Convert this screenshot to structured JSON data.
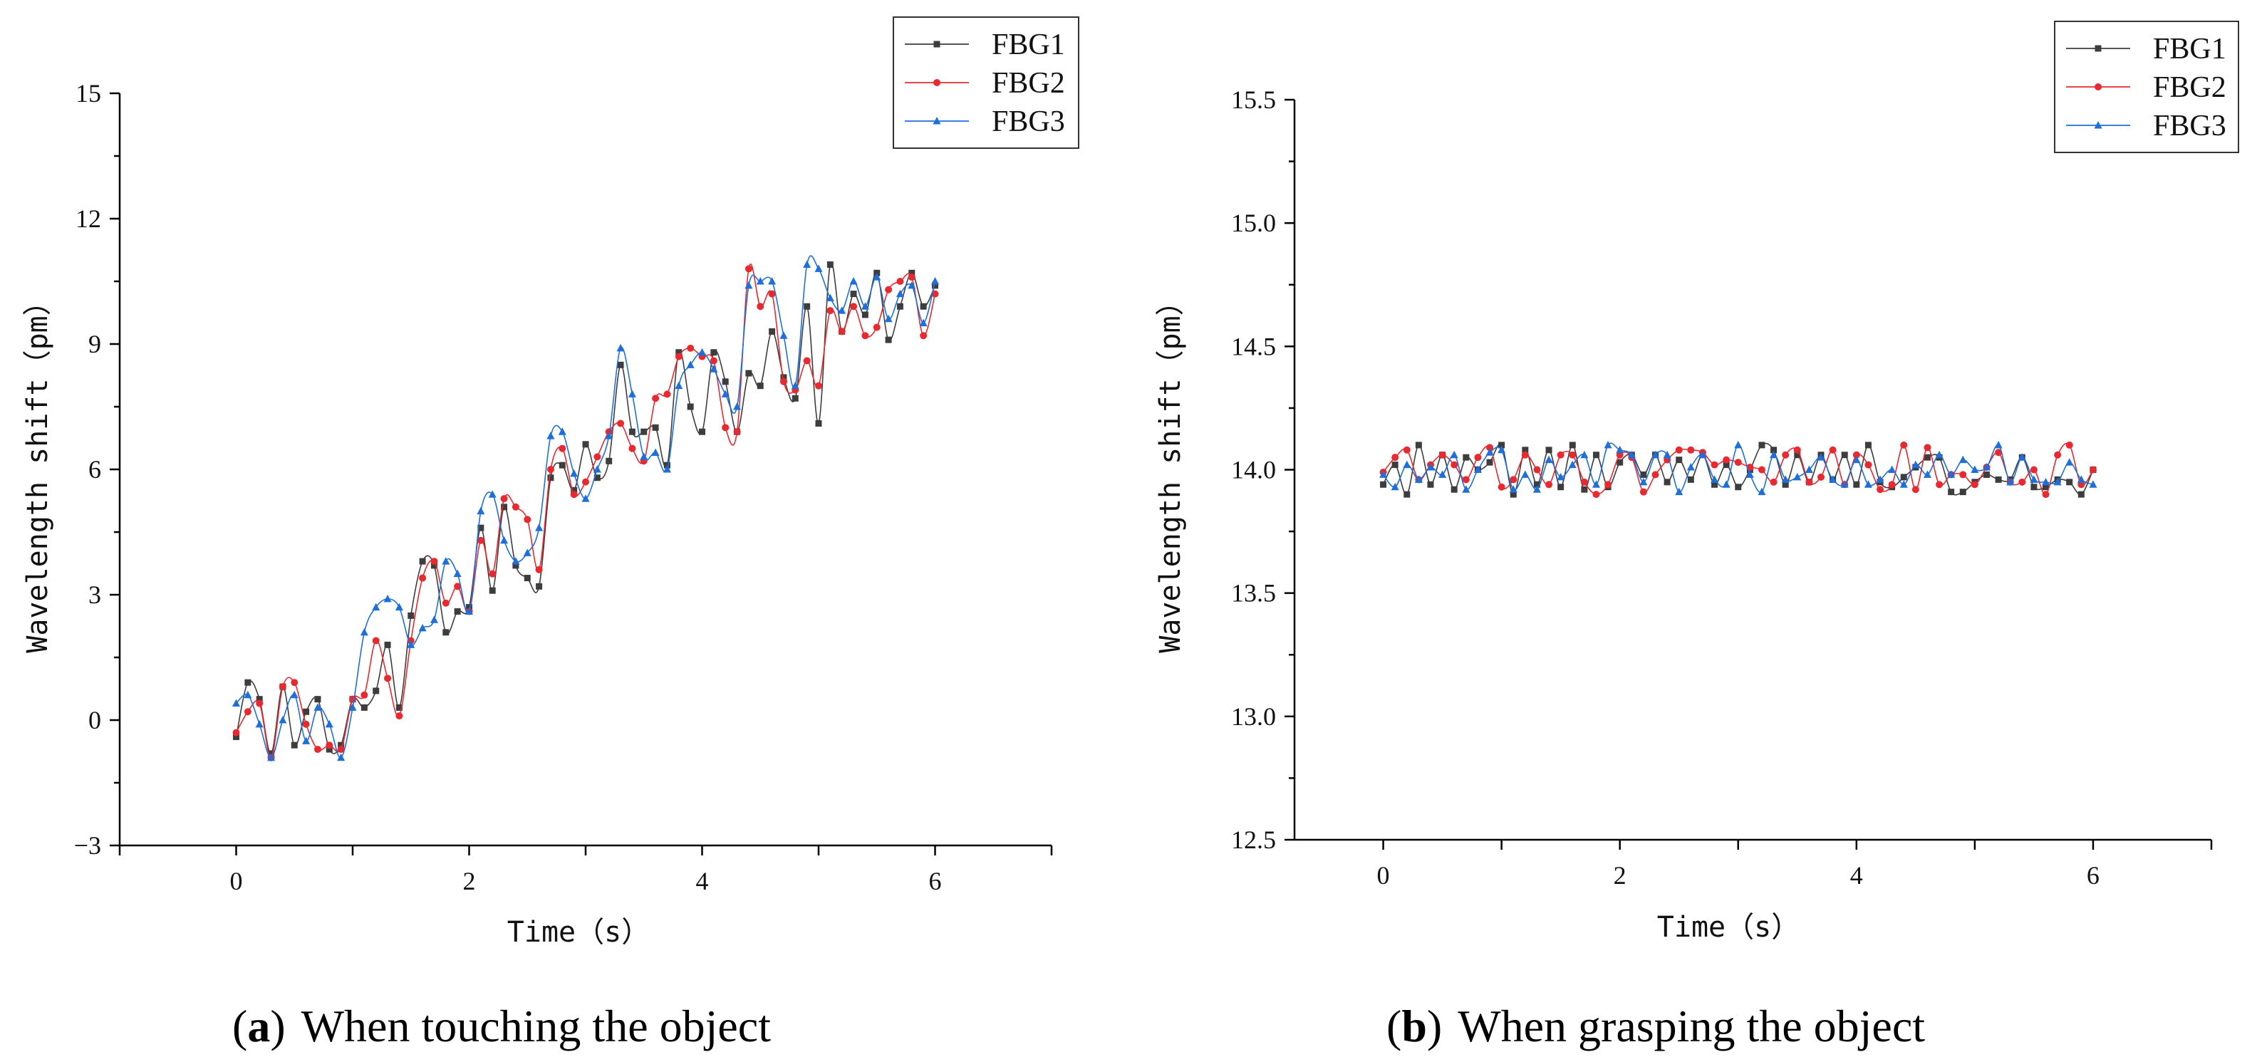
{
  "colors": {
    "FBG1": "#3d3d3d",
    "FBG2": "#e8292f",
    "FBG3": "#1e6fd9"
  },
  "chart_data": [
    {
      "type": "line",
      "caption_letter": "a",
      "caption_text": "When touching the object",
      "xlabel": "Time（s）",
      "ylabel": "Wavelength shift（pm）",
      "xlim": [
        -1,
        7
      ],
      "ylim": [
        -3,
        15
      ],
      "xticks": [
        "0",
        "2",
        "4",
        "6"
      ],
      "yticks": [
        "−3",
        "0",
        "3",
        "6",
        "9",
        "12",
        "15"
      ],
      "legend": [
        "FBG1",
        "FBG2",
        "FBG3"
      ],
      "legend_position": "top-right",
      "x": [
        0,
        0.1,
        0.2,
        0.3,
        0.4,
        0.5,
        0.6,
        0.7,
        0.8,
        0.9,
        1.0,
        1.1,
        1.2,
        1.3,
        1.4,
        1.5,
        1.6,
        1.7,
        1.8,
        1.9,
        2.0,
        2.1,
        2.2,
        2.3,
        2.4,
        2.5,
        2.6,
        2.7,
        2.8,
        2.9,
        3.0,
        3.1,
        3.2,
        3.3,
        3.4,
        3.5,
        3.6,
        3.7,
        3.8,
        3.9,
        4.0,
        4.1,
        4.2,
        4.3,
        4.4,
        4.5,
        4.6,
        4.7,
        4.8,
        4.9,
        5.0,
        5.1,
        5.2,
        5.3,
        5.4,
        5.5,
        5.6,
        5.7,
        5.8,
        5.9,
        6.0
      ],
      "series": [
        {
          "name": "FBG1",
          "values": [
            -0.4,
            0.9,
            0.5,
            -0.8,
            0.8,
            -0.6,
            0.2,
            0.5,
            -0.7,
            -0.6,
            0.5,
            0.3,
            0.7,
            1.8,
            0.3,
            2.5,
            3.8,
            3.7,
            2.1,
            2.6,
            2.7,
            4.6,
            3.1,
            5.1,
            3.7,
            3.4,
            3.2,
            5.8,
            6.1,
            5.5,
            6.6,
            5.8,
            6.2,
            8.5,
            6.9,
            6.9,
            7.0,
            6.1,
            8.8,
            7.5,
            6.9,
            8.8,
            8.1,
            6.9,
            8.3,
            8.0,
            9.3,
            8.2,
            7.7,
            9.9,
            7.1,
            10.9,
            9.3,
            10.2,
            9.7,
            10.7,
            9.1,
            9.9,
            10.7,
            9.9,
            10.4
          ]
        },
        {
          "name": "FBG2",
          "values": [
            -0.3,
            0.2,
            0.4,
            -0.9,
            0.8,
            0.9,
            -0.1,
            -0.7,
            -0.6,
            -0.7,
            0.5,
            0.6,
            1.9,
            1.0,
            0.1,
            1.9,
            3.4,
            3.8,
            2.8,
            3.2,
            2.6,
            4.3,
            3.5,
            5.3,
            5.1,
            4.8,
            3.6,
            6.0,
            6.5,
            5.4,
            5.7,
            6.3,
            6.9,
            7.1,
            6.5,
            6.2,
            7.7,
            7.8,
            8.7,
            8.9,
            8.7,
            8.6,
            7.0,
            6.9,
            10.8,
            9.9,
            10.2,
            8.1,
            7.9,
            8.6,
            8.0,
            9.8,
            9.3,
            9.9,
            9.2,
            9.4,
            10.3,
            10.5,
            10.6,
            9.2,
            10.2
          ]
        },
        {
          "name": "FBG3",
          "values": [
            0.4,
            0.6,
            -0.1,
            -0.9,
            0.0,
            0.6,
            -0.5,
            0.3,
            -0.1,
            -0.9,
            0.3,
            2.1,
            2.7,
            2.9,
            2.7,
            1.8,
            2.2,
            2.4,
            3.8,
            3.5,
            2.6,
            5.0,
            5.4,
            4.3,
            3.8,
            4.0,
            4.6,
            6.8,
            6.9,
            5.9,
            5.3,
            6.0,
            6.8,
            8.9,
            7.8,
            6.3,
            6.4,
            6.0,
            8.0,
            8.5,
            8.8,
            8.4,
            7.8,
            7.5,
            10.4,
            10.5,
            10.5,
            9.2,
            8.0,
            10.9,
            10.8,
            10.1,
            9.8,
            10.5,
            9.9,
            10.6,
            9.6,
            10.2,
            10.4,
            9.5,
            10.5
          ]
        }
      ]
    },
    {
      "type": "line",
      "caption_letter": "b",
      "caption_text": "When grasping the object",
      "xlabel": "Time（s）",
      "ylabel": "Wavelength shift（pm）",
      "xlim": [
        -0.75,
        7
      ],
      "ylim": [
        12.5,
        15.5
      ],
      "xticks": [
        "0",
        "2",
        "4",
        "6"
      ],
      "yticks": [
        "12.5",
        "13.0",
        "13.5",
        "14.0",
        "14.5",
        "15.0",
        "15.5"
      ],
      "legend": [
        "FBG1",
        "FBG2",
        "FBG3"
      ],
      "legend_position": "top-right",
      "x": [
        0,
        0.1,
        0.2,
        0.3,
        0.4,
        0.5,
        0.6,
        0.7,
        0.8,
        0.9,
        1.0,
        1.1,
        1.2,
        1.3,
        1.4,
        1.5,
        1.6,
        1.7,
        1.8,
        1.9,
        2.0,
        2.1,
        2.2,
        2.3,
        2.4,
        2.5,
        2.6,
        2.7,
        2.8,
        2.9,
        3.0,
        3.1,
        3.2,
        3.3,
        3.4,
        3.5,
        3.6,
        3.7,
        3.8,
        3.9,
        4.0,
        4.1,
        4.2,
        4.3,
        4.4,
        4.5,
        4.6,
        4.7,
        4.8,
        4.9,
        5.0,
        5.1,
        5.2,
        5.3,
        5.4,
        5.5,
        5.6,
        5.7,
        5.8,
        5.9,
        6.0
      ],
      "series": [
        {
          "name": "FBG1",
          "values": [
            13.94,
            14.02,
            13.9,
            14.1,
            13.94,
            14.06,
            13.92,
            14.05,
            14.0,
            14.03,
            14.1,
            13.9,
            14.08,
            13.94,
            14.08,
            13.93,
            14.1,
            13.92,
            14.06,
            13.93,
            14.03,
            14.06,
            13.98,
            14.06,
            13.95,
            14.04,
            13.96,
            14.06,
            13.94,
            14.02,
            13.93,
            14.0,
            14.1,
            14.08,
            13.94,
            14.06,
            13.95,
            14.06,
            13.96,
            14.06,
            13.94,
            14.1,
            13.95,
            13.93,
            13.97,
            14.01,
            14.05,
            14.05,
            13.91,
            13.91,
            13.95,
            13.98,
            13.96,
            13.96,
            14.05,
            13.93,
            13.93,
            13.96,
            13.95,
            13.9,
            14.0
          ]
        },
        {
          "name": "FBG2",
          "values": [
            13.99,
            14.05,
            14.08,
            13.96,
            14.02,
            14.06,
            14.02,
            13.96,
            14.05,
            14.09,
            13.93,
            13.96,
            14.06,
            14.0,
            13.94,
            14.06,
            14.06,
            13.95,
            13.9,
            13.94,
            14.06,
            14.05,
            13.91,
            13.98,
            14.04,
            14.08,
            14.08,
            14.07,
            14.02,
            14.04,
            14.03,
            14.01,
            14.0,
            13.95,
            14.06,
            14.08,
            13.95,
            13.97,
            14.08,
            13.94,
            14.06,
            14.02,
            13.92,
            13.94,
            14.1,
            13.92,
            14.09,
            13.94,
            13.98,
            13.98,
            13.94,
            14.01,
            14.07,
            13.95,
            13.95,
            14.0,
            13.9,
            14.06,
            14.1,
            13.94,
            14.0
          ]
        },
        {
          "name": "FBG3",
          "values": [
            13.98,
            13.93,
            14.02,
            13.96,
            14.01,
            13.98,
            14.06,
            13.92,
            14.0,
            14.07,
            14.08,
            13.92,
            13.98,
            13.92,
            14.04,
            13.97,
            14.02,
            14.06,
            13.94,
            14.1,
            14.08,
            14.06,
            13.95,
            14.06,
            14.06,
            13.91,
            14.01,
            14.06,
            13.96,
            13.94,
            14.1,
            13.98,
            13.91,
            14.06,
            13.96,
            13.97,
            14.0,
            14.05,
            13.96,
            13.94,
            14.04,
            13.94,
            13.96,
            14.0,
            13.94,
            14.02,
            13.98,
            14.06,
            13.98,
            14.04,
            14.0,
            14.01,
            14.1,
            13.95,
            14.05,
            13.96,
            13.95,
            13.95,
            14.03,
            13.96,
            13.94
          ]
        }
      ]
    }
  ]
}
